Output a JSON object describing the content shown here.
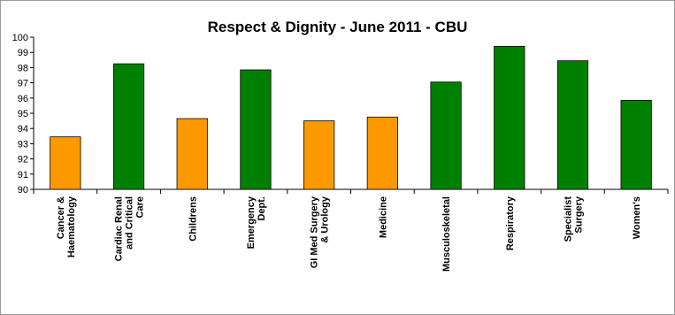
{
  "chart_data": {
    "type": "bar",
    "title": "Respect & Dignity - June 2011 - CBU",
    "xlabel": "",
    "ylabel": "",
    "ylim": [
      90,
      100
    ],
    "yticks": [
      90,
      91,
      92,
      93,
      94,
      95,
      96,
      97,
      98,
      99,
      100
    ],
    "grid": false,
    "legend": "none",
    "categories": [
      [
        "Cancer &",
        "Haematology"
      ],
      [
        "Cardiac Renal",
        "and Critical",
        "Care"
      ],
      [
        "Childrens"
      ],
      [
        "Emergency",
        "Dept."
      ],
      [
        "GI Med Surgery",
        "& Urology"
      ],
      [
        "Medicine"
      ],
      [
        "Musculoskeletal"
      ],
      [
        "Respiratory"
      ],
      [
        "Specialist",
        "Surgery"
      ],
      [
        "Women's"
      ]
    ],
    "values": [
      93.45,
      98.25,
      94.65,
      97.85,
      94.5,
      94.75,
      97.05,
      99.4,
      98.45,
      95.85
    ],
    "bar_colors": [
      "#ff9900",
      "#008000",
      "#ff9900",
      "#008000",
      "#ff9900",
      "#ff9900",
      "#008000",
      "#008000",
      "#008000",
      "#008000"
    ],
    "bar_edge_color": "#000000"
  }
}
